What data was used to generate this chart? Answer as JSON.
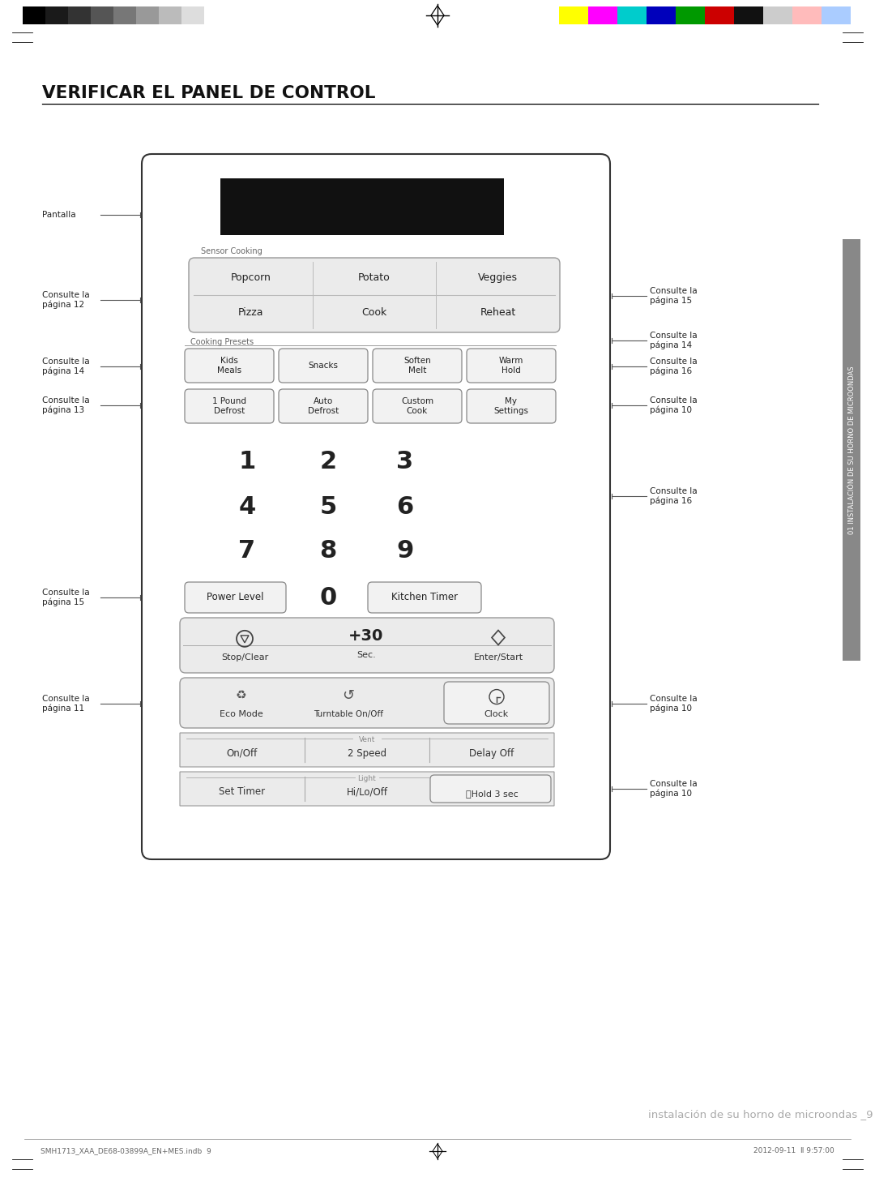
{
  "title": "VERIFICAR EL PANEL DE CONTROL",
  "bg_color": "#ffffff",
  "footer_text_left": "SMH1713_XAA_DE68-03899A_EN+MES.indb  9",
  "footer_text_right": "2012-09-11  Ⅱ 9:57:00",
  "footer_page": "instalación de su horno de microondas _9",
  "sidebar_text": "01 INSTALACIÓN DE SU HORNO DE MICROONDAS",
  "grays": [
    "#000000",
    "#1a1a1a",
    "#333333",
    "#555555",
    "#777777",
    "#999999",
    "#bbbbbb",
    "#dddddd",
    "#ffffff"
  ],
  "colors_r": [
    "#ffff00",
    "#ff00ff",
    "#00cccc",
    "#0000bb",
    "#009900",
    "#cc0000",
    "#111111",
    "#cccccc",
    "#ffbbbb",
    "#aaccff"
  ]
}
